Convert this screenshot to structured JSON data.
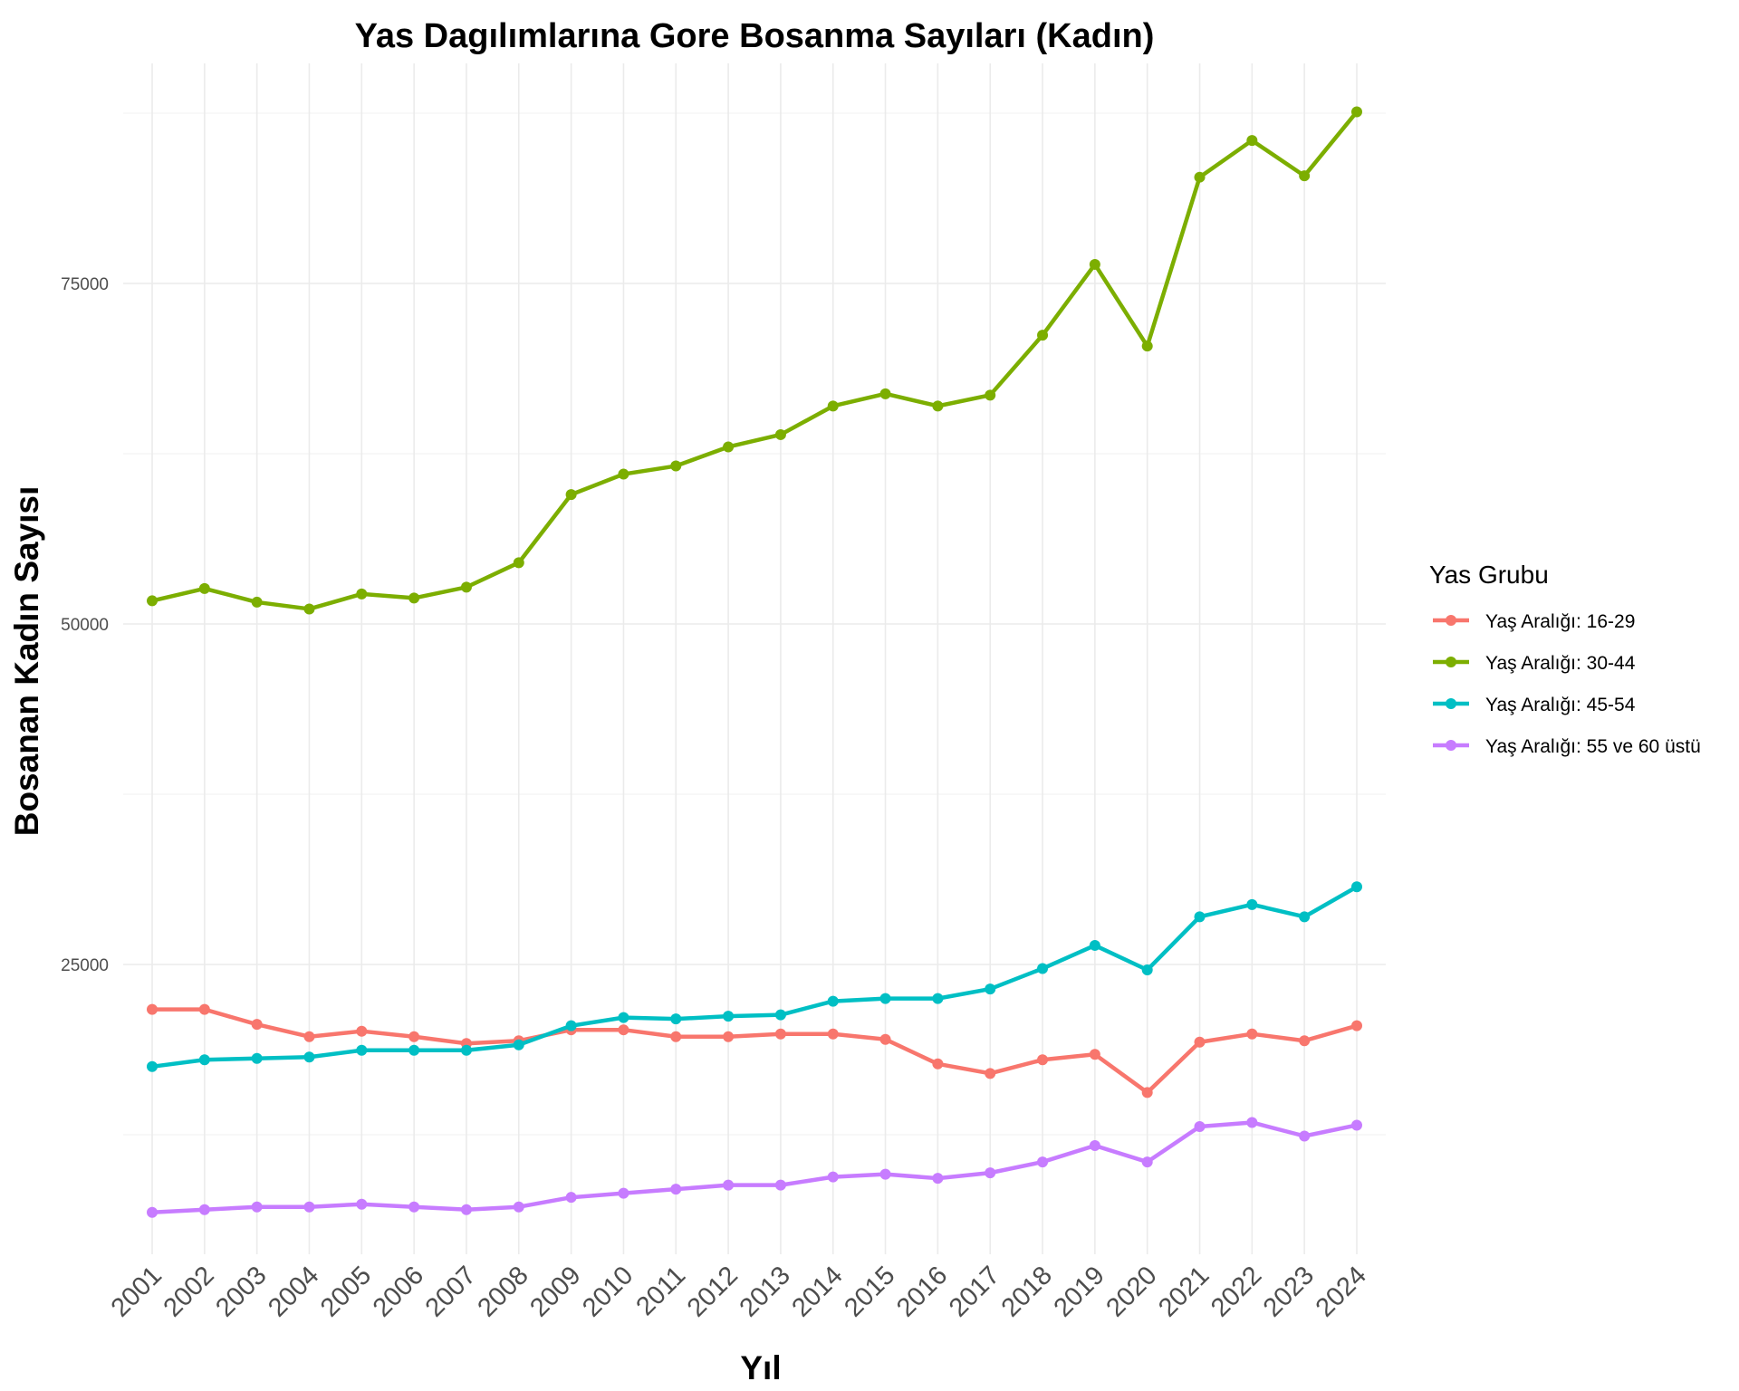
{
  "chart_data": {
    "type": "line",
    "title": "Yas Dagılımlarına Gore Bosanma Sayıları (Kadın)",
    "xlabel": "Yıl",
    "ylabel": "Bosanan Kadın Sayısı",
    "x": [
      2001,
      2002,
      2003,
      2004,
      2005,
      2006,
      2007,
      2008,
      2009,
      2010,
      2011,
      2012,
      2013,
      2014,
      2015,
      2016,
      2017,
      2018,
      2019,
      2020,
      2021,
      2022,
      2023,
      2024
    ],
    "xlim": [
      2001,
      2024
    ],
    "ylim": [
      3000,
      91000
    ],
    "yticks": [
      25000,
      50000,
      75000
    ],
    "grid": true,
    "legend": {
      "title": "Yas Grubu",
      "placement": "right"
    },
    "series": [
      {
        "name": "Yaş Aralığı: 16-29",
        "color": "#F8766D",
        "values": [
          21700,
          21700,
          20600,
          19700,
          20100,
          19700,
          19200,
          19400,
          20200,
          20200,
          19700,
          19700,
          19900,
          19900,
          19500,
          17700,
          17000,
          18000,
          18400,
          15600,
          19300,
          19900,
          19400,
          20500
        ]
      },
      {
        "name": "Yaş Aralığı: 30-44",
        "color": "#7CAE00",
        "values": [
          51700,
          52600,
          51600,
          51100,
          52200,
          51900,
          52700,
          54500,
          59500,
          61000,
          61600,
          63000,
          63900,
          66000,
          66900,
          66000,
          66800,
          71200,
          76400,
          70400,
          82800,
          85500,
          82900,
          87600
        ]
      },
      {
        "name": "Yaş Aralığı: 45-54",
        "color": "#00BFC4",
        "values": [
          17500,
          18000,
          18100,
          18200,
          18700,
          18700,
          18700,
          19100,
          20500,
          21100,
          21000,
          21200,
          21300,
          22300,
          22500,
          22500,
          23200,
          24700,
          26400,
          24600,
          28500,
          29400,
          28500,
          30700
        ]
      },
      {
        "name": "Yaş Aralığı: 55 ve 60 üstü",
        "color": "#C77CFF",
        "values": [
          6800,
          7000,
          7200,
          7200,
          7400,
          7200,
          7000,
          7200,
          7900,
          8200,
          8500,
          8800,
          8800,
          9400,
          9600,
          9300,
          9700,
          10500,
          11700,
          10500,
          13100,
          13400,
          12400,
          13200
        ]
      }
    ]
  }
}
